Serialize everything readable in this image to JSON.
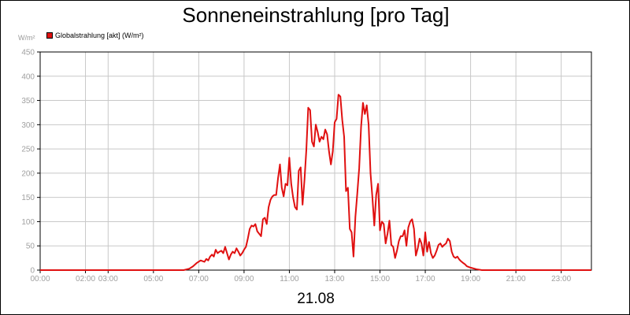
{
  "title": "Sonneneinstrahlung [pro Tag]",
  "unit_label": "W/m²",
  "legend_label": "Globalstrahlung [akt] (W/m²)",
  "date_label": "21.08",
  "colors": {
    "series": "#e01010",
    "grid": "#c8c8c8",
    "tick_text": "#a0a0a0",
    "frame": "#000000"
  },
  "chart_data": {
    "type": "line",
    "title": "Sonneneinstrahlung [pro Tag]",
    "xlabel": "",
    "ylabel": "W/m²",
    "grid": true,
    "legend": "top-left",
    "xlim": [
      "00:00",
      "24:20"
    ],
    "ylim": [
      0,
      450
    ],
    "y_ticks": [
      0,
      50,
      100,
      150,
      200,
      250,
      300,
      350,
      400,
      450
    ],
    "x_ticks": [
      "00:00",
      "02:00",
      "03:00",
      "05:00",
      "07:00",
      "09:00",
      "11:00",
      "13:00",
      "15:00",
      "17:00",
      "19:00",
      "21:00",
      "23:00"
    ],
    "series": [
      {
        "name": "Globalstrahlung [akt] (W/m²)",
        "color": "#e01010",
        "points": [
          [
            "00:00",
            0
          ],
          [
            "06:20",
            0
          ],
          [
            "06:35",
            3
          ],
          [
            "06:45",
            8
          ],
          [
            "06:55",
            15
          ],
          [
            "07:05",
            20
          ],
          [
            "07:15",
            17
          ],
          [
            "07:20",
            23
          ],
          [
            "07:25",
            20
          ],
          [
            "07:30",
            28
          ],
          [
            "07:35",
            32
          ],
          [
            "07:40",
            28
          ],
          [
            "07:45",
            42
          ],
          [
            "07:50",
            35
          ],
          [
            "07:55",
            38
          ],
          [
            "08:00",
            40
          ],
          [
            "08:05",
            35
          ],
          [
            "08:10",
            48
          ],
          [
            "08:15",
            35
          ],
          [
            "08:20",
            22
          ],
          [
            "08:25",
            32
          ],
          [
            "08:30",
            38
          ],
          [
            "08:35",
            35
          ],
          [
            "08:40",
            45
          ],
          [
            "08:45",
            38
          ],
          [
            "08:50",
            30
          ],
          [
            "08:55",
            35
          ],
          [
            "09:00",
            42
          ],
          [
            "09:05",
            48
          ],
          [
            "09:10",
            65
          ],
          [
            "09:15",
            85
          ],
          [
            "09:20",
            92
          ],
          [
            "09:25",
            90
          ],
          [
            "09:30",
            95
          ],
          [
            "09:35",
            80
          ],
          [
            "09:40",
            75
          ],
          [
            "09:45",
            70
          ],
          [
            "09:50",
            105
          ],
          [
            "09:55",
            108
          ],
          [
            "10:00",
            95
          ],
          [
            "10:05",
            130
          ],
          [
            "10:10",
            145
          ],
          [
            "10:15",
            152
          ],
          [
            "10:20",
            155
          ],
          [
            "10:25",
            155
          ],
          [
            "10:30",
            190
          ],
          [
            "10:35",
            218
          ],
          [
            "10:40",
            170
          ],
          [
            "10:45",
            152
          ],
          [
            "10:50",
            178
          ],
          [
            "10:55",
            175
          ],
          [
            "11:00",
            232
          ],
          [
            "11:05",
            178
          ],
          [
            "11:10",
            150
          ],
          [
            "11:15",
            130
          ],
          [
            "11:20",
            125
          ],
          [
            "11:25",
            205
          ],
          [
            "11:30",
            212
          ],
          [
            "11:35",
            135
          ],
          [
            "11:40",
            185
          ],
          [
            "11:45",
            248
          ],
          [
            "11:50",
            335
          ],
          [
            "11:55",
            330
          ],
          [
            "12:00",
            265
          ],
          [
            "12:05",
            255
          ],
          [
            "12:10",
            300
          ],
          [
            "12:15",
            285
          ],
          [
            "12:20",
            265
          ],
          [
            "12:25",
            275
          ],
          [
            "12:30",
            270
          ],
          [
            "12:35",
            290
          ],
          [
            "12:40",
            280
          ],
          [
            "12:45",
            245
          ],
          [
            "12:50",
            218
          ],
          [
            "12:55",
            245
          ],
          [
            "13:00",
            305
          ],
          [
            "13:05",
            312
          ],
          [
            "13:10",
            362
          ],
          [
            "13:15",
            358
          ],
          [
            "13:20",
            310
          ],
          [
            "13:25",
            275
          ],
          [
            "13:30",
            163
          ],
          [
            "13:35",
            170
          ],
          [
            "13:40",
            85
          ],
          [
            "13:45",
            78
          ],
          [
            "13:50",
            28
          ],
          [
            "13:55",
            110
          ],
          [
            "14:00",
            158
          ],
          [
            "14:05",
            210
          ],
          [
            "14:10",
            295
          ],
          [
            "14:15",
            345
          ],
          [
            "14:20",
            322
          ],
          [
            "14:25",
            340
          ],
          [
            "14:30",
            300
          ],
          [
            "14:35",
            200
          ],
          [
            "14:40",
            150
          ],
          [
            "14:45",
            92
          ],
          [
            "14:50",
            155
          ],
          [
            "14:55",
            178
          ],
          [
            "15:00",
            82
          ],
          [
            "15:05",
            100
          ],
          [
            "15:10",
            95
          ],
          [
            "15:15",
            55
          ],
          [
            "15:20",
            75
          ],
          [
            "15:25",
            102
          ],
          [
            "15:30",
            52
          ],
          [
            "15:35",
            48
          ],
          [
            "15:40",
            25
          ],
          [
            "15:45",
            40
          ],
          [
            "15:50",
            60
          ],
          [
            "15:55",
            70
          ],
          [
            "16:00",
            70
          ],
          [
            "16:05",
            82
          ],
          [
            "16:10",
            50
          ],
          [
            "16:15",
            88
          ],
          [
            "16:20",
            100
          ],
          [
            "16:25",
            105
          ],
          [
            "16:30",
            85
          ],
          [
            "16:35",
            30
          ],
          [
            "16:40",
            45
          ],
          [
            "16:45",
            65
          ],
          [
            "16:50",
            55
          ],
          [
            "16:55",
            30
          ],
          [
            "17:00",
            78
          ],
          [
            "17:05",
            38
          ],
          [
            "17:10",
            58
          ],
          [
            "17:15",
            35
          ],
          [
            "17:20",
            25
          ],
          [
            "17:25",
            30
          ],
          [
            "17:30",
            40
          ],
          [
            "17:35",
            52
          ],
          [
            "17:40",
            55
          ],
          [
            "17:45",
            48
          ],
          [
            "17:50",
            52
          ],
          [
            "17:55",
            55
          ],
          [
            "18:00",
            65
          ],
          [
            "18:05",
            60
          ],
          [
            "18:10",
            38
          ],
          [
            "18:15",
            28
          ],
          [
            "18:20",
            25
          ],
          [
            "18:25",
            28
          ],
          [
            "18:30",
            22
          ],
          [
            "18:35",
            18
          ],
          [
            "18:40",
            15
          ],
          [
            "18:45",
            12
          ],
          [
            "18:50",
            8
          ],
          [
            "19:00",
            5
          ],
          [
            "19:15",
            2
          ],
          [
            "19:30",
            0
          ],
          [
            "24:20",
            0
          ]
        ]
      }
    ]
  }
}
